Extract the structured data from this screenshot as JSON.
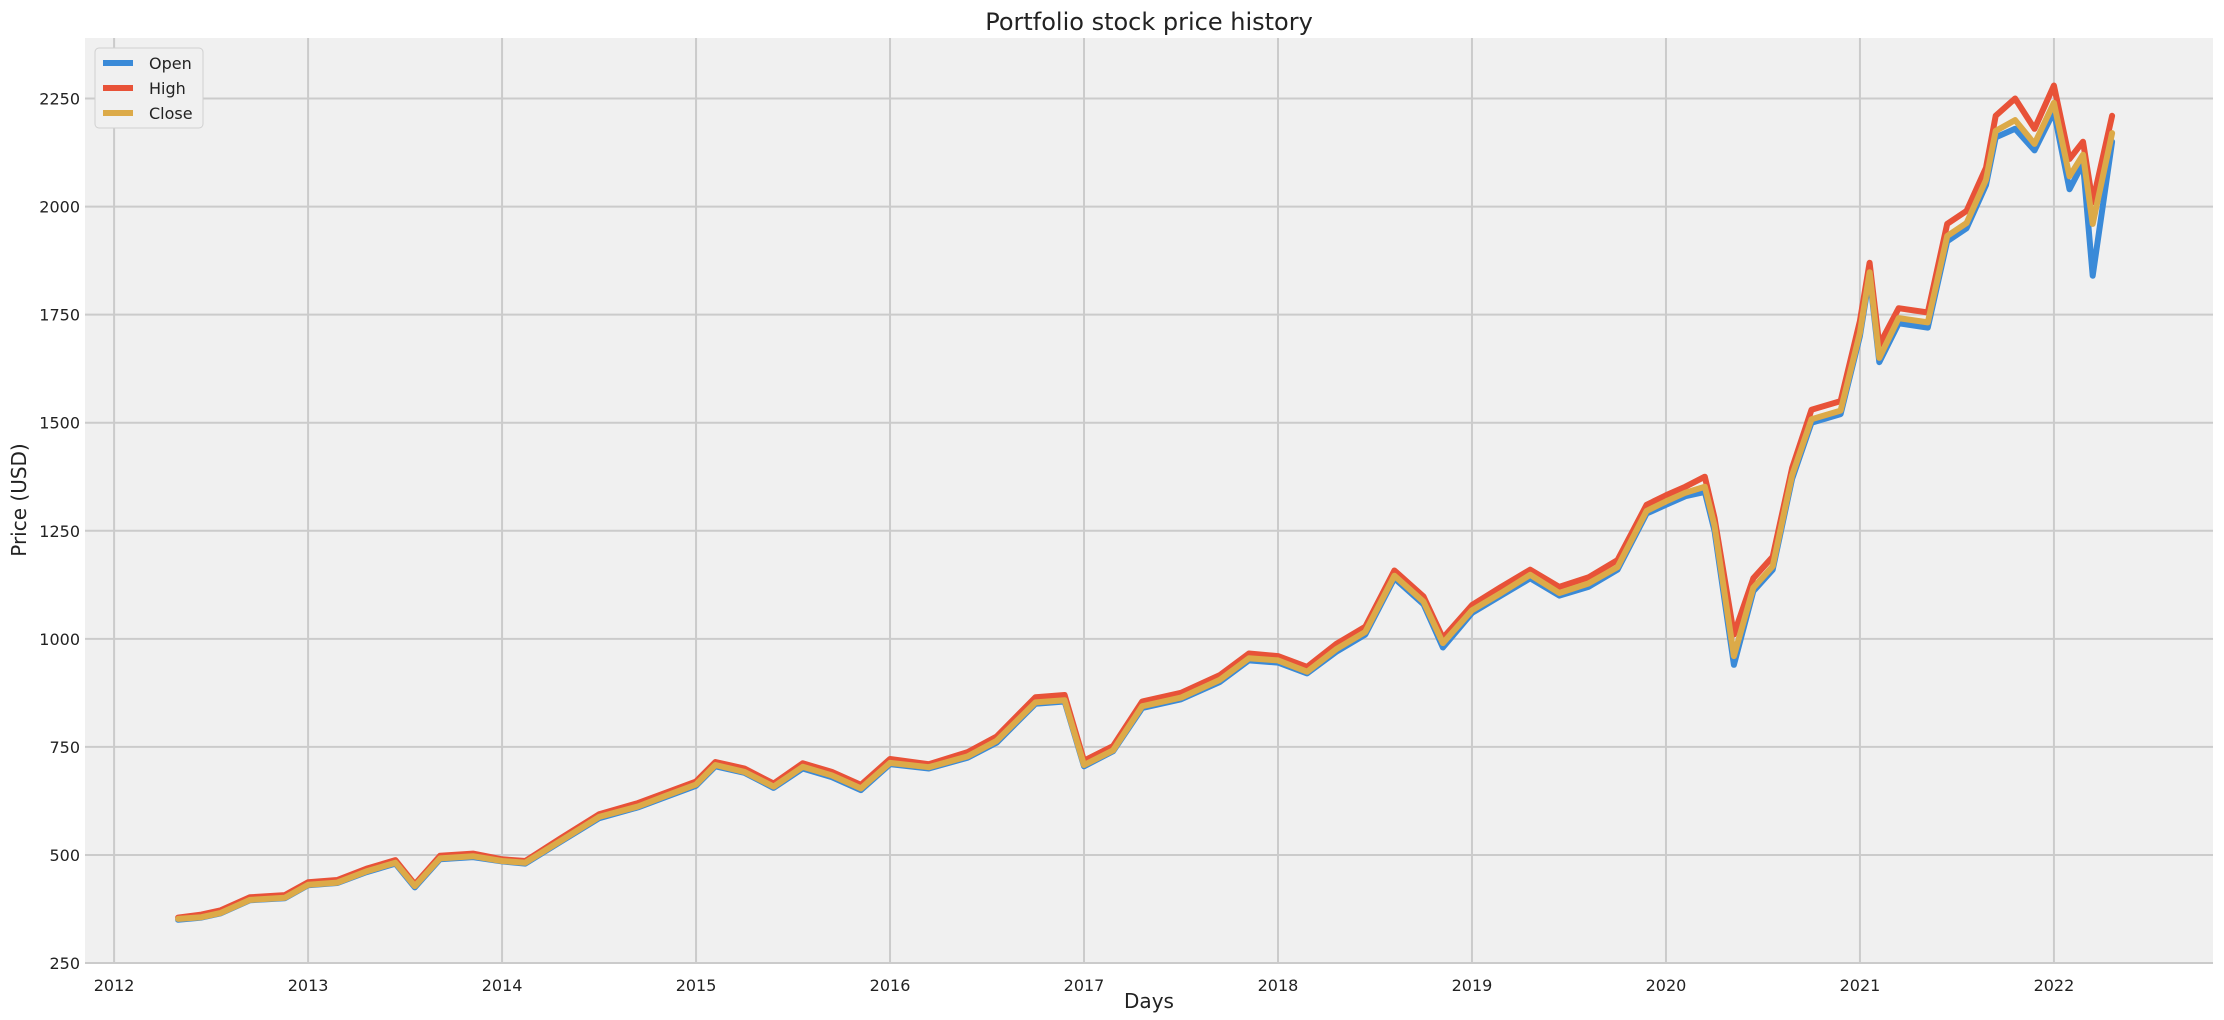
{
  "chart_data": {
    "type": "line",
    "title": "Portfolio stock price history",
    "xlabel": "Days",
    "ylabel": "Price (USD)",
    "xlim": [
      2011.85,
      2022.82
    ],
    "ylim": [
      250,
      2390
    ],
    "x_ticks": [
      2012,
      2013,
      2014,
      2015,
      2016,
      2017,
      2018,
      2019,
      2020,
      2021,
      2022
    ],
    "x_tick_labels": [
      "2012",
      "2013",
      "2014",
      "2015",
      "2016",
      "2017",
      "2018",
      "2019",
      "2020",
      "2021",
      "2022"
    ],
    "y_ticks": [
      250,
      500,
      750,
      1000,
      1250,
      1500,
      1750,
      2000,
      2250
    ],
    "y_tick_labels": [
      "250",
      "500",
      "750",
      "1000",
      "1250",
      "1500",
      "1750",
      "2000",
      "2250"
    ],
    "grid": true,
    "legend_position": "top-left",
    "x": [
      2012.33,
      2012.45,
      2012.55,
      2012.7,
      2012.88,
      2013.0,
      2013.15,
      2013.3,
      2013.45,
      2013.55,
      2013.68,
      2013.85,
      2014.0,
      2014.12,
      2014.3,
      2014.5,
      2014.7,
      2014.85,
      2015.0,
      2015.1,
      2015.25,
      2015.4,
      2015.55,
      2015.7,
      2015.85,
      2016.0,
      2016.2,
      2016.4,
      2016.55,
      2016.75,
      2016.9,
      2017.0,
      2017.15,
      2017.3,
      2017.5,
      2017.7,
      2017.85,
      2018.0,
      2018.15,
      2018.3,
      2018.45,
      2018.6,
      2018.75,
      2018.85,
      2019.0,
      2019.15,
      2019.3,
      2019.45,
      2019.6,
      2019.75,
      2019.9,
      2020.0,
      2020.1,
      2020.2,
      2020.25,
      2020.35,
      2020.45,
      2020.55,
      2020.65,
      2020.75,
      2020.9,
      2021.0,
      2021.05,
      2021.1,
      2021.2,
      2021.35,
      2021.45,
      2021.55,
      2021.65,
      2021.7,
      2021.8,
      2021.9,
      2022.0,
      2022.08,
      2022.15,
      2022.2,
      2022.3
    ],
    "series": [
      {
        "name": "Open",
        "color": "#3a8ad8",
        "values": [
          350,
          355,
          365,
          395,
          400,
          430,
          435,
          460,
          480,
          425,
          490,
          495,
          485,
          480,
          530,
          585,
          610,
          635,
          660,
          705,
          690,
          655,
          700,
          680,
          650,
          710,
          700,
          725,
          760,
          850,
          855,
          705,
          740,
          840,
          860,
          900,
          950,
          945,
          920,
          970,
          1010,
          1140,
          1080,
          980,
          1060,
          1100,
          1140,
          1100,
          1120,
          1160,
          1290,
          1310,
          1330,
          1340,
          1250,
          940,
          1110,
          1160,
          1370,
          1500,
          1520,
          1700,
          1840,
          1640,
          1730,
          1720,
          1920,
          1950,
          2050,
          2160,
          2180,
          2130,
          2220,
          2040,
          2100,
          1840,
          2150
        ]
      },
      {
        "name": "High",
        "color": "#e85238",
        "values": [
          355,
          362,
          372,
          402,
          407,
          437,
          442,
          468,
          488,
          432,
          498,
          503,
          490,
          486,
          538,
          594,
          620,
          645,
          670,
          715,
          700,
          665,
          712,
          692,
          662,
          722,
          710,
          738,
          774,
          865,
          870,
          718,
          752,
          855,
          875,
          916,
          966,
          960,
          935,
          988,
          1028,
          1158,
          1098,
          1002,
          1078,
          1120,
          1160,
          1120,
          1142,
          1182,
          1310,
          1332,
          1352,
          1375,
          1280,
          1010,
          1140,
          1190,
          1395,
          1530,
          1550,
          1735,
          1870,
          1680,
          1765,
          1755,
          1960,
          1990,
          2090,
          2210,
          2250,
          2180,
          2280,
          2110,
          2150,
          2010,
          2210
        ]
      },
      {
        "name": "Close",
        "color": "#dcaa48",
        "values": [
          352,
          356,
          366,
          396,
          401,
          431,
          436,
          462,
          482,
          428,
          492,
          497,
          486,
          482,
          532,
          588,
          612,
          638,
          663,
          708,
          692,
          658,
          704,
          684,
          654,
          713,
          703,
          728,
          764,
          853,
          858,
          708,
          742,
          844,
          864,
          905,
          955,
          950,
          924,
          976,
          1016,
          1146,
          1086,
          990,
          1066,
          1106,
          1148,
          1106,
          1128,
          1166,
          1296,
          1318,
          1338,
          1352,
          1262,
          960,
          1118,
          1168,
          1378,
          1508,
          1528,
          1708,
          1848,
          1650,
          1742,
          1732,
          1932,
          1962,
          2062,
          2175,
          2200,
          2145,
          2240,
          2070,
          2120,
          1960,
          2170
        ]
      }
    ]
  }
}
